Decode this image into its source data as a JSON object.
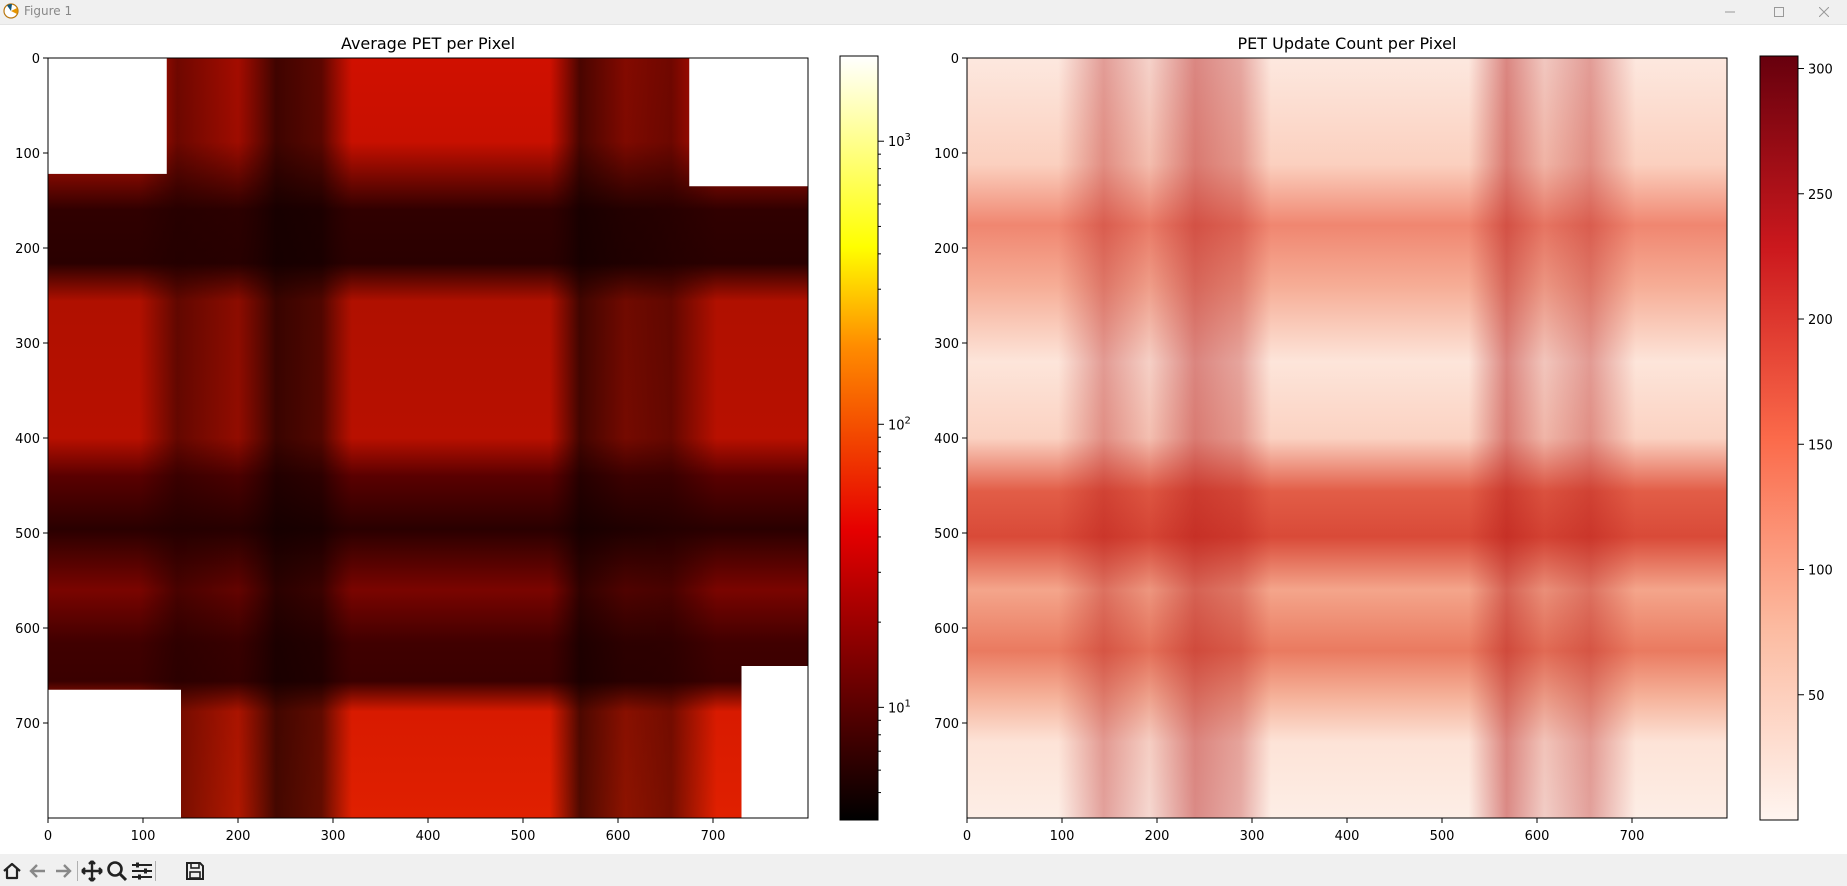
{
  "window": {
    "title": "Figure 1"
  },
  "toolbar": {
    "buttons": [
      {
        "name": "home-icon"
      },
      {
        "name": "back-arrow-icon"
      },
      {
        "name": "forward-arrow-icon"
      },
      {
        "name": "pan-icon"
      },
      {
        "name": "zoom-icon"
      },
      {
        "name": "configure-subplots-icon"
      },
      {
        "name": "save-icon"
      }
    ]
  },
  "chart_data": [
    {
      "type": "heatmap",
      "title": "Average PET per Pixel",
      "xlabel": "",
      "ylabel": "",
      "xlim": [
        0,
        800
      ],
      "ylim": [
        800,
        0
      ],
      "x_ticks": [
        0,
        100,
        200,
        300,
        400,
        500,
        600,
        700
      ],
      "y_ticks": [
        0,
        100,
        200,
        300,
        400,
        500,
        600,
        700
      ],
      "colormap": "hot",
      "colorbar": {
        "scale": "log",
        "range": [
          4,
          2000
        ],
        "ticks": [
          {
            "value": 10,
            "label": "10",
            "exp": "1"
          },
          {
            "value": 100,
            "label": "10",
            "exp": "2"
          },
          {
            "value": 1000,
            "label": "10",
            "exp": "3"
          }
        ]
      },
      "structure": {
        "row_bands": [
          [
            130,
            280
          ],
          [
            420,
            560
          ],
          [
            570,
            670
          ]
        ],
        "col_bands": [
          [
            100,
            300
          ],
          [
            530,
            680
          ]
        ],
        "empty_corners": [
          "top-left",
          "top-right",
          "bottom-left",
          "bottom-right"
        ]
      }
    },
    {
      "type": "heatmap",
      "title": "PET Update Count per Pixel",
      "xlabel": "",
      "ylabel": "",
      "xlim": [
        0,
        800
      ],
      "ylim": [
        800,
        0
      ],
      "x_ticks": [
        0,
        100,
        200,
        300,
        400,
        500,
        600,
        700
      ],
      "y_ticks": [
        0,
        100,
        200,
        300,
        400,
        500,
        600,
        700
      ],
      "colormap": "Reds",
      "colorbar": {
        "scale": "linear",
        "range": [
          0,
          305
        ],
        "ticks": [
          {
            "value": 50,
            "label": "50"
          },
          {
            "value": 100,
            "label": "100"
          },
          {
            "value": 150,
            "label": "150"
          },
          {
            "value": 200,
            "label": "200"
          },
          {
            "value": 250,
            "label": "250"
          },
          {
            "value": 300,
            "label": "300"
          }
        ]
      },
      "structure": {
        "row_bands": [
          [
            130,
            280
          ],
          [
            420,
            560
          ],
          [
            570,
            670
          ]
        ],
        "col_bands": [
          [
            100,
            300
          ],
          [
            530,
            680
          ]
        ]
      }
    }
  ]
}
